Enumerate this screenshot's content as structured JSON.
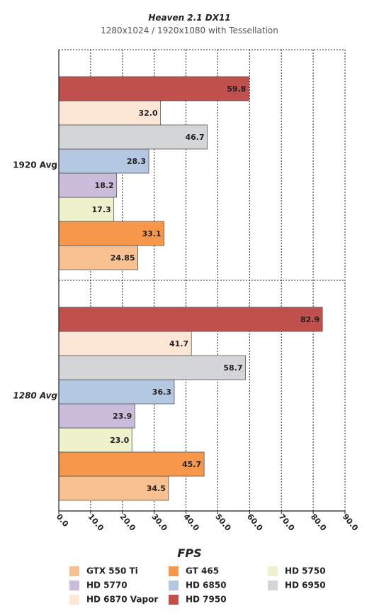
{
  "chart_data": {
    "type": "bar",
    "orientation": "horizontal",
    "title": "Heaven 2.1 DX11",
    "subtitle": "1280x1024 / 1920x1080 with Tessellation",
    "xlabel": "FPS",
    "ylabel": "",
    "xlim": [
      0,
      90
    ],
    "xticks": [
      "0.0",
      "10.0",
      "20.0",
      "30.0",
      "40.0",
      "50.0",
      "60.0",
      "70.0",
      "80.0",
      "90.0"
    ],
    "grid": true,
    "legend_position": "bottom",
    "categories": [
      "1920 Avg",
      "1280 Avg"
    ],
    "series": [
      {
        "name": "GTX 550 Ti",
        "color": "#f9c191",
        "values": [
          24.85,
          34.5
        ],
        "labels": [
          "24.85",
          "34.5"
        ]
      },
      {
        "name": "GT 465",
        "color": "#f7974b",
        "values": [
          33.1,
          45.7
        ],
        "labels": [
          "33.1",
          "45.7"
        ]
      },
      {
        "name": "HD 5750",
        "color": "#eef1cc",
        "values": [
          17.3,
          23.0
        ],
        "labels": [
          "17.3",
          "23.0"
        ]
      },
      {
        "name": "HD 5770",
        "color": "#ccbcdc",
        "values": [
          18.2,
          23.9
        ],
        "labels": [
          "18.2",
          "23.9"
        ]
      },
      {
        "name": "HD 6850",
        "color": "#b5c8e2",
        "values": [
          28.3,
          36.3
        ],
        "labels": [
          "28.3",
          "36.3"
        ]
      },
      {
        "name": "HD 6950",
        "color": "#d3d5d8",
        "values": [
          46.7,
          58.7
        ],
        "labels": [
          "46.7",
          "58.7"
        ]
      },
      {
        "name": "HD 6870 Vapor",
        "color": "#fde6d6",
        "values": [
          32.0,
          41.7
        ],
        "labels": [
          "32.0",
          "41.7"
        ]
      },
      {
        "name": "HD 7950",
        "color": "#c0504d",
        "values": [
          59.8,
          82.9
        ],
        "labels": [
          "59.8",
          "82.9"
        ]
      }
    ]
  }
}
